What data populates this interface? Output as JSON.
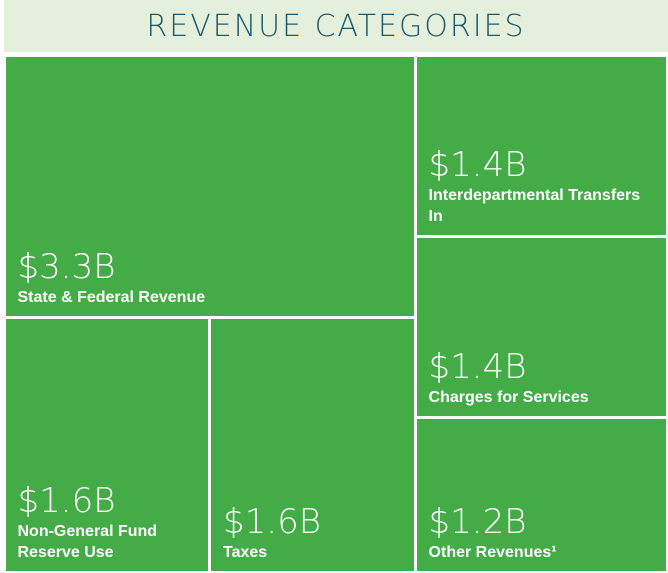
{
  "chart_data": {
    "type": "treemap",
    "title": "REVENUE CATEGORIES",
    "categories": [
      "State & Federal Revenue",
      "Non-General Fund Reserve Use",
      "Taxes",
      "Interdepartmental Transfers In",
      "Charges for Services",
      "Other Revenues¹"
    ],
    "values": [
      3.3,
      1.6,
      1.6,
      1.4,
      1.4,
      1.2
    ],
    "value_labels": [
      "$3.3B",
      "$1.6B",
      "$1.6B",
      "$1.4B",
      "$1.4B",
      "$1.2B"
    ],
    "color": "#43ac47"
  }
}
